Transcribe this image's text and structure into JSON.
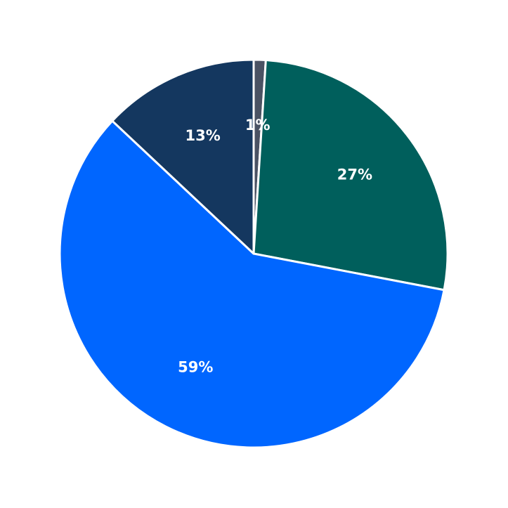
{
  "chart_data": {
    "type": "pie",
    "values": [
      1,
      27,
      59,
      13
    ],
    "value_labels": [
      "1%",
      "27%",
      "59%",
      "13%"
    ],
    "colors": [
      "#4a5263",
      "#005f5c",
      "#0066ff",
      "#14375f"
    ]
  }
}
